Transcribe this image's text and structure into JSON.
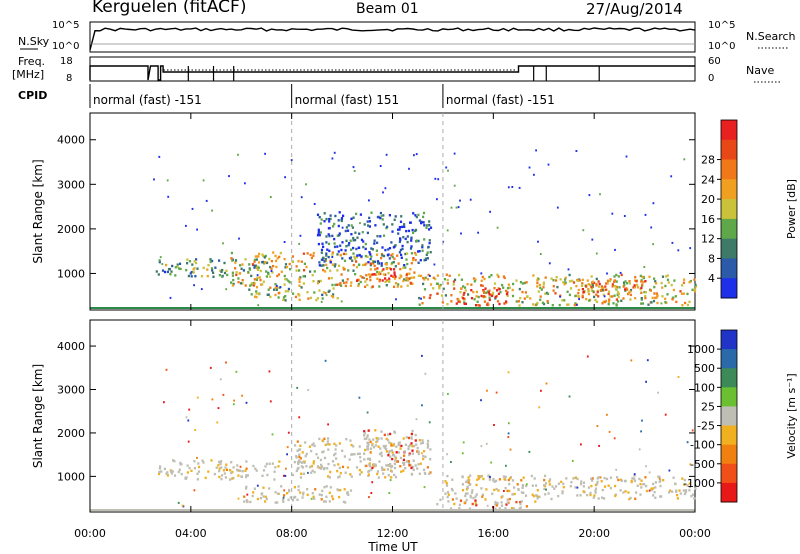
{
  "header": {
    "station": "Kerguelen (fitACF)",
    "beam": "Beam 01",
    "date": "27/Aug/2014"
  },
  "status_panels": {
    "nsky_label": "N.Sky",
    "nsearch_label": "N.Search",
    "nsky_ticks": [
      "10^5",
      "10^0"
    ],
    "freq_label": [
      "Freq.",
      "[MHz]"
    ],
    "freq_ticks": [
      "18",
      "8"
    ],
    "nave_label": "Nave",
    "nave_ticks": [
      "60",
      "0"
    ],
    "cpid_label": "CPID",
    "cpid_segments": [
      {
        "label": "normal (fast) -151",
        "start_hour": 0.0,
        "end_hour": 8.0
      },
      {
        "label": "normal (fast) 151",
        "start_hour": 8.0,
        "end_hour": 14.0
      },
      {
        "label": "normal (fast) -151",
        "start_hour": 14.0,
        "end_hour": 24.0
      }
    ]
  },
  "chart_data": [
    {
      "type": "heatmap",
      "title": "",
      "xlabel": "Time UT",
      "ylabel": "Slant Range [km]",
      "xlim": [
        0,
        24
      ],
      "ylim": [
        180,
        4600
      ],
      "x_tick_labels": [
        "00:00",
        "04:00",
        "08:00",
        "12:00",
        "16:00",
        "20:00",
        "00:00"
      ],
      "y_tick_labels": [
        "1000",
        "2000",
        "3000",
        "4000"
      ],
      "colorbar": {
        "label": "Power [dB]",
        "ticks": [
          "4",
          "8",
          "12",
          "16",
          "20",
          "24",
          "28"
        ],
        "colors": [
          "#1f2ee8",
          "#2a5aa8",
          "#3d7a68",
          "#5fa84a",
          "#c9c23a",
          "#f0a020",
          "#f07818",
          "#e84818",
          "#e82020"
        ]
      },
      "regions": [
        {
          "t": [
            2.6,
            7.2
          ],
          "r": [
            950,
            1350
          ],
          "level": 0.35
        },
        {
          "t": [
            5.5,
            13.0
          ],
          "r": [
            700,
            1500
          ],
          "level": 0.55
        },
        {
          "t": [
            9.0,
            13.5
          ],
          "r": [
            1200,
            2400
          ],
          "level": 0.15
        },
        {
          "t": [
            6.0,
            9.8
          ],
          "r": [
            420,
            700
          ],
          "level": 0.45
        },
        {
          "t": [
            10.5,
            12.8
          ],
          "r": [
            850,
            1150
          ],
          "level": 0.8
        },
        {
          "t": [
            13.0,
            24.0
          ],
          "r": [
            300,
            1000
          ],
          "level": 0.55
        },
        {
          "t": [
            14.5,
            16.5
          ],
          "r": [
            300,
            700
          ],
          "level": 0.9
        },
        {
          "t": [
            19.0,
            22.0
          ],
          "r": [
            500,
            900
          ],
          "level": 0.7
        }
      ]
    },
    {
      "type": "heatmap",
      "title": "",
      "xlabel": "Time UT",
      "ylabel": "Slant Range [km]",
      "xlim": [
        0,
        24
      ],
      "ylim": [
        180,
        4600
      ],
      "x_tick_labels": [
        "00:00",
        "04:00",
        "08:00",
        "12:00",
        "16:00",
        "20:00",
        "00:00"
      ],
      "y_tick_labels": [
        "1000",
        "2000",
        "3000",
        "4000"
      ],
      "colorbar": {
        "label": "Velocity [m s⁻¹]",
        "ticks": [
          "1000",
          "500",
          "100",
          "25",
          "-25",
          "-100",
          "-500",
          "-1000"
        ],
        "colors": [
          "#2034c8",
          "#2a6aa8",
          "#3c8a58",
          "#6ac030",
          "#bebeb4",
          "#f0b020",
          "#f08010",
          "#f05018",
          "#e81818"
        ]
      },
      "regions": [
        {
          "t": [
            2.6,
            7.5
          ],
          "r": [
            950,
            1400
          ],
          "level": 0.5
        },
        {
          "t": [
            6.0,
            10.5
          ],
          "r": [
            420,
            800
          ],
          "level": 0.5
        },
        {
          "t": [
            8.0,
            13.5
          ],
          "r": [
            1000,
            1900
          ],
          "level": 0.45
        },
        {
          "t": [
            10.8,
            13.0
          ],
          "r": [
            1200,
            2100
          ],
          "level": 0.85
        },
        {
          "t": [
            13.5,
            18.0
          ],
          "r": [
            280,
            500
          ],
          "level": 0.8
        },
        {
          "t": [
            14.0,
            24.0
          ],
          "r": [
            500,
            1050
          ],
          "level": 0.5
        }
      ]
    }
  ]
}
